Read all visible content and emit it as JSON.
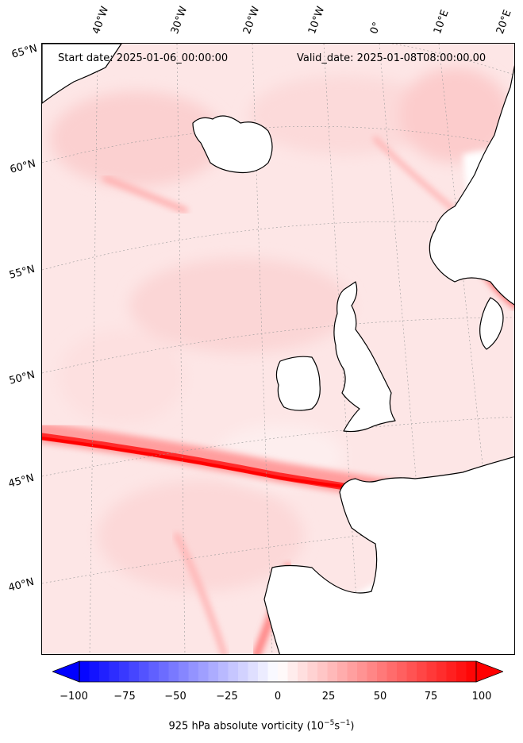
{
  "header": {
    "start_date": "Start date: 2025-01-06_00:00:00",
    "valid_date": "Valid_date: 2025-01-08T08:00:00.00"
  },
  "longitude_labels": [
    "40°W",
    "30°W",
    "20°W",
    "10°W",
    "0°",
    "10°E",
    "20°E"
  ],
  "latitude_labels": [
    "65°N",
    "60°N",
    "55°N",
    "50°N",
    "45°N",
    "40°N"
  ],
  "colorbar": {
    "min": -100,
    "max": 100,
    "ticks": [
      "−100",
      "−75",
      "−50",
      "−25",
      "0",
      "25",
      "50",
      "75",
      "100"
    ],
    "extend": "both",
    "colormap": "bwr",
    "label_prefix": "925 hPa absolute vorticity (10",
    "label_exp1": "−5",
    "label_mid": "s",
    "label_exp2": "−1",
    "label_suffix": ")"
  },
  "colors": {
    "negative": "#0000ff",
    "zero": "#ffffff",
    "positive": "#ff0000",
    "coastline": "#000000"
  }
}
